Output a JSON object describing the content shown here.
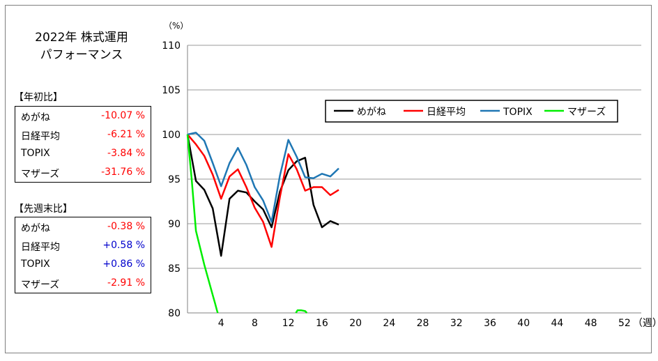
{
  "title_line1": "2022年 株式運用",
  "title_line2": "パフォーマンス",
  "ytd": {
    "header": "【年初比】",
    "rows": [
      {
        "name": "めがね",
        "value": "-10.07 %",
        "sign": "neg"
      },
      {
        "name": "日経平均",
        "value": "-6.21 %",
        "sign": "neg"
      },
      {
        "name": "TOPIX",
        "value": "-3.84 %",
        "sign": "neg"
      },
      {
        "name": "マザーズ",
        "value": "-31.76 %",
        "sign": "neg"
      }
    ]
  },
  "wow": {
    "header": "【先週末比】",
    "rows": [
      {
        "name": "めがね",
        "value": "-0.38 %",
        "sign": "neg"
      },
      {
        "name": "日経平均",
        "value": "+0.58 %",
        "sign": "pos"
      },
      {
        "name": "TOPIX",
        "value": "+0.86 %",
        "sign": "pos"
      },
      {
        "name": "マザーズ",
        "value": "-2.91 %",
        "sign": "neg"
      }
    ]
  },
  "chart_data": {
    "type": "line",
    "y_unit_label": "（%）",
    "x_unit_label": "（週）",
    "ylim": [
      80,
      110
    ],
    "xlim": [
      0,
      54
    ],
    "y_ticks": [
      80,
      85,
      90,
      95,
      100,
      105,
      110
    ],
    "x_ticks": [
      4,
      8,
      12,
      16,
      20,
      24,
      28,
      32,
      36,
      40,
      44,
      48,
      52
    ],
    "grid": "horizontal",
    "legend_position": "top-right",
    "series": [
      {
        "name": "めがね",
        "color": "#000000",
        "x": [
          0,
          1,
          2,
          3,
          4,
          5,
          6,
          7,
          8,
          9,
          10,
          11,
          12,
          13,
          14,
          15,
          16,
          17,
          18
        ],
        "y": [
          100,
          94.8,
          93.8,
          91.7,
          86.4,
          92.8,
          93.7,
          93.5,
          92.5,
          91.6,
          89.6,
          93.6,
          96.0,
          97.0,
          97.4,
          92.1,
          89.6,
          90.3,
          89.9
        ]
      },
      {
        "name": "日経平均",
        "color": "#ff0000",
        "x": [
          0,
          1,
          2,
          3,
          4,
          5,
          6,
          7,
          8,
          9,
          10,
          11,
          12,
          13,
          14,
          15,
          16,
          17,
          18
        ],
        "y": [
          100,
          98.9,
          97.6,
          95.5,
          92.8,
          95.3,
          96.1,
          94.1,
          91.8,
          90.2,
          87.4,
          93.0,
          97.8,
          96.1,
          93.7,
          94.1,
          94.1,
          93.2,
          93.8
        ]
      },
      {
        "name": "TOPIX",
        "color": "#1f77b4",
        "x": [
          0,
          1,
          2,
          3,
          4,
          5,
          6,
          7,
          8,
          9,
          10,
          11,
          12,
          13,
          14,
          15,
          16,
          17,
          18
        ],
        "y": [
          100,
          100.2,
          99.3,
          96.8,
          94.2,
          96.8,
          98.5,
          96.6,
          94.1,
          92.6,
          90.2,
          95.4,
          99.4,
          97.5,
          95.2,
          95.1,
          95.6,
          95.3,
          96.2
        ]
      },
      {
        "name": "マザーズ",
        "color": "#00ee00",
        "segments": [
          {
            "x": [
              0,
              0.5,
              1,
              2,
              3,
              3.3,
              3.5,
              3.6
            ],
            "y": [
              100,
              95,
              89.2,
              85.4,
              82.0,
              81.0,
              80.3,
              80
            ]
          },
          {
            "x": [
              12.9,
              13.1,
              13.5,
              14.0,
              14.2
            ],
            "y": [
              80,
              80.3,
              80.3,
              80.2,
              80
            ]
          }
        ]
      }
    ]
  }
}
